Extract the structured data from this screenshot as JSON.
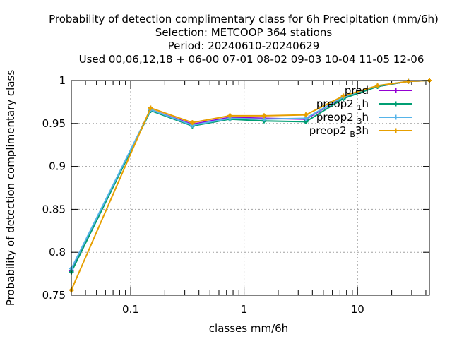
{
  "chart_data": {
    "type": "line",
    "title_lines": [
      "Probability of detection complimentary class  for 6h Precipitation (mm/6h)",
      "Selection: METCOOP    364 stations",
      "Period: 20240610-20240629",
      "Used  00,06,12,18 + 06-00 07-01 08-02 09-03 10-04 11-05 12-06"
    ],
    "xlabel": "classes mm/6h",
    "ylabel": "Probability of detection complimentary class",
    "x_scale": "log",
    "xlim": [
      0.03,
      43
    ],
    "ylim": [
      0.75,
      1.0
    ],
    "x_ticks": [
      {
        "value": 0.1,
        "label": "0.1"
      },
      {
        "value": 1,
        "label": "1"
      },
      {
        "value": 10,
        "label": "10"
      }
    ],
    "y_ticks": [
      {
        "value": 0.75,
        "label": "0.75"
      },
      {
        "value": 0.8,
        "label": "0.8"
      },
      {
        "value": 0.85,
        "label": "0.85"
      },
      {
        "value": 0.9,
        "label": "0.9"
      },
      {
        "value": 0.95,
        "label": "0.95"
      },
      {
        "value": 1.0,
        "label": "1"
      }
    ],
    "grid": true,
    "legend_position": "top-right",
    "x": [
      0.03,
      0.15,
      0.35,
      0.75,
      1.5,
      3.5,
      7.5,
      15,
      28,
      43
    ],
    "series": [
      {
        "name": "pred",
        "legend_main": "pred",
        "legend_sub": "",
        "legend_tail": "",
        "color": "#9400d3",
        "values": [
          0.778,
          0.966,
          0.949,
          0.957,
          0.956,
          0.955,
          0.981,
          0.993,
          0.999,
          1.0
        ]
      },
      {
        "name": "preop2_1h",
        "legend_main": "preop2 ",
        "legend_sub": "1",
        "legend_tail": "h",
        "color": "#009e73",
        "values": [
          0.777,
          0.965,
          0.947,
          0.955,
          0.953,
          0.952,
          0.979,
          0.993,
          0.999,
          1.0
        ]
      },
      {
        "name": "preop2_3h",
        "legend_main": "preop2 ",
        "legend_sub": "3",
        "legend_tail": "h",
        "color": "#56b4e9",
        "values": [
          0.781,
          0.966,
          0.948,
          0.956,
          0.955,
          0.956,
          0.981,
          0.994,
          0.999,
          1.0
        ]
      },
      {
        "name": "preop2_B3h",
        "legend_main": "preop2 ",
        "legend_sub": "B",
        "legend_tail": "3h",
        "color": "#e69f00",
        "values": [
          0.756,
          0.968,
          0.951,
          0.959,
          0.959,
          0.96,
          0.982,
          0.994,
          0.999,
          1.0
        ]
      }
    ]
  }
}
